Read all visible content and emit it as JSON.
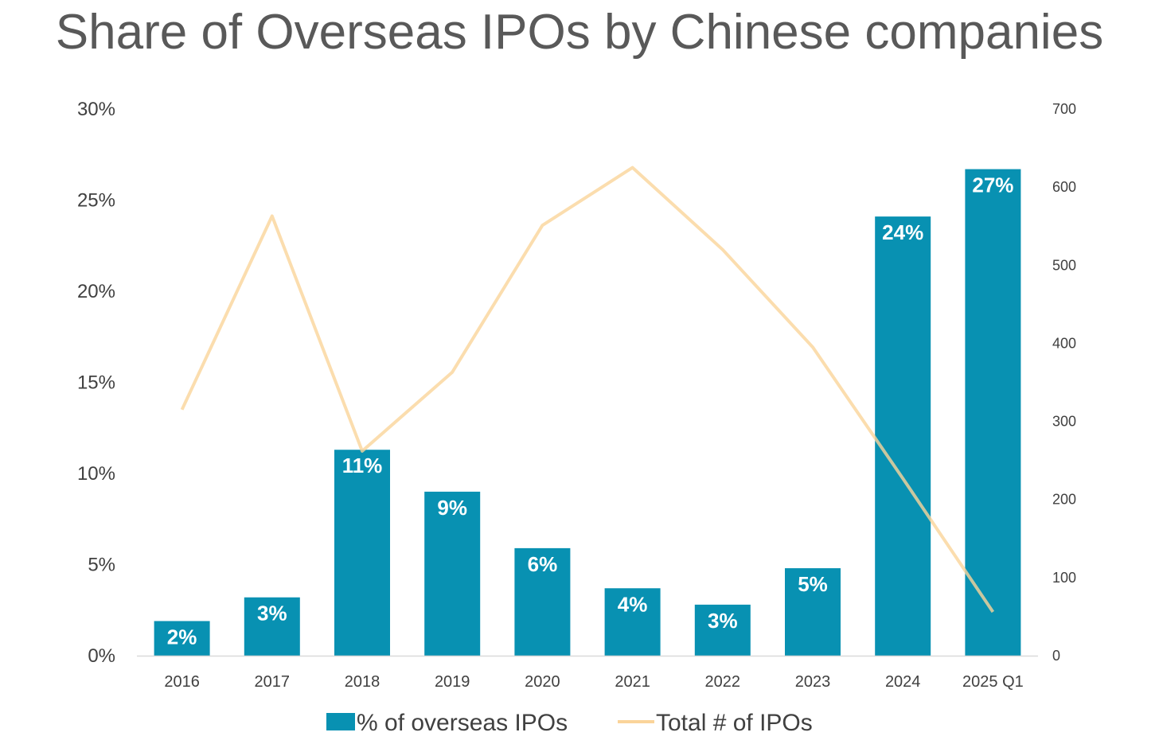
{
  "chart_data": {
    "type": "bar",
    "title": "Share of Overseas IPOs by Chinese companies",
    "categories": [
      "2016",
      "2017",
      "2018",
      "2019",
      "2020",
      "2021",
      "2022",
      "2023",
      "2024",
      "2025 Q1"
    ],
    "series": [
      {
        "name": "% of overseas IPOs",
        "type": "bar",
        "axis": "left",
        "values": [
          1.9,
          3.2,
          11.3,
          9.0,
          5.9,
          3.7,
          2.8,
          4.8,
          24.1,
          26.7
        ],
        "labels": [
          "2%",
          "3%",
          "11%",
          "9%",
          "6%",
          "4%",
          "3%",
          "5%",
          "24%",
          "27%"
        ],
        "color": "#0891B2"
      },
      {
        "name": "Total # of IPOs",
        "type": "line",
        "axis": "right",
        "values": [
          315,
          563,
          262,
          363,
          551,
          625,
          520,
          395,
          227,
          56
        ],
        "color": "#FAD49A"
      }
    ],
    "y_left": {
      "ylim": [
        0,
        30
      ],
      "ticks": [
        "0%",
        "5%",
        "10%",
        "15%",
        "20%",
        "25%",
        "30%"
      ]
    },
    "y_right": {
      "ylim": [
        0,
        700
      ],
      "ticks": [
        "0",
        "100",
        "200",
        "300",
        "400",
        "500",
        "600",
        "700"
      ]
    },
    "xlabel": "",
    "ylabel": "",
    "grid": false,
    "legend": "bottom"
  }
}
